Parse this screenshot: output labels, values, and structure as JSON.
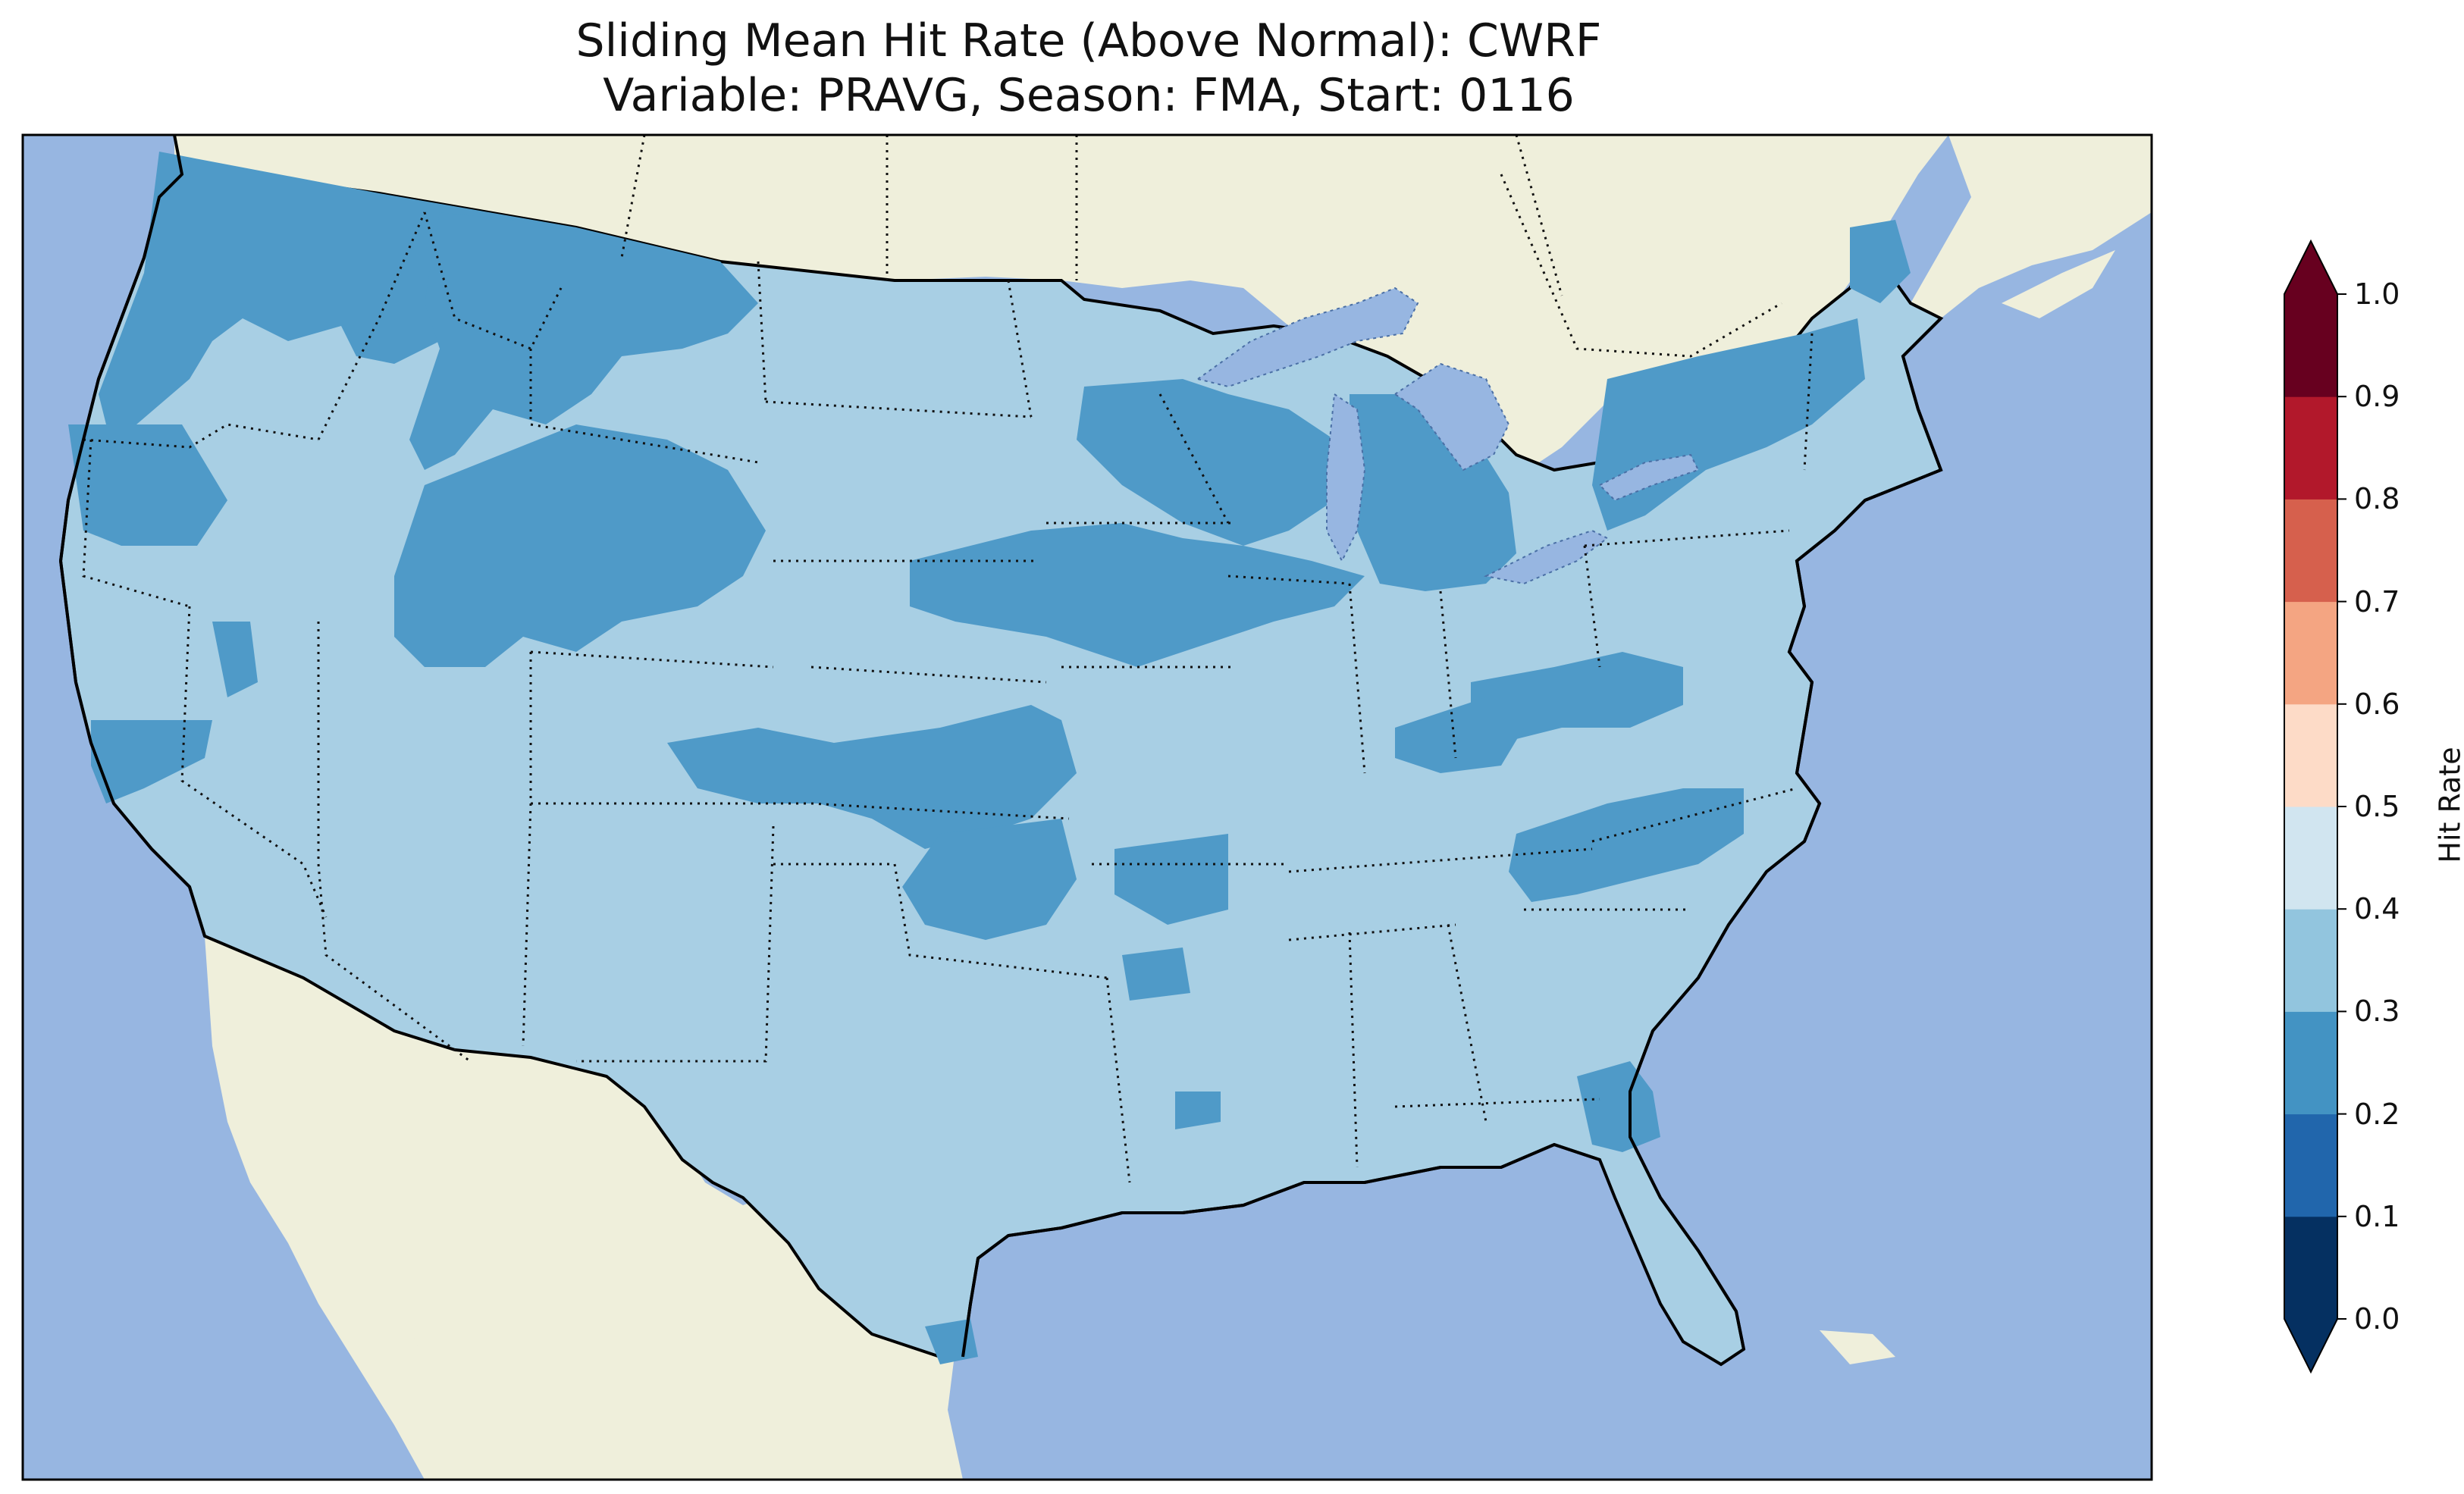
{
  "title": {
    "line1": "Sliding Mean Hit Rate (Above Normal): CWRF",
    "line2": "Variable: PRAVG, Season: FMA, Start: 0116"
  },
  "map": {
    "ocean_color": "#97b6e1",
    "land_color": "#efefdb",
    "lake_color": "#97b6e1",
    "coastline_color": "#000000",
    "state_border_style": "dotted"
  },
  "colorbar": {
    "label": "Hit Rate",
    "levels": [
      0.0,
      0.1,
      0.2,
      0.3,
      0.4,
      0.5,
      0.6,
      0.7,
      0.8,
      0.9,
      1.0
    ],
    "tick_labels": [
      "0.0",
      "0.1",
      "0.2",
      "0.3",
      "0.4",
      "0.5",
      "0.6",
      "0.7",
      "0.8",
      "0.9",
      "1.0"
    ],
    "colors": [
      "#053061",
      "#2166ac",
      "#4393c3",
      "#92c5de",
      "#d1e5f0",
      "#fddbc7",
      "#f4a582",
      "#d6604d",
      "#b2182b",
      "#67001f"
    ],
    "extend": "both",
    "under_color": "#053061",
    "over_color": "#67001f"
  },
  "field_colors": {
    "0.2-0.3": "#4f9ac8",
    "0.3-0.4": "#a8cfe4"
  }
}
